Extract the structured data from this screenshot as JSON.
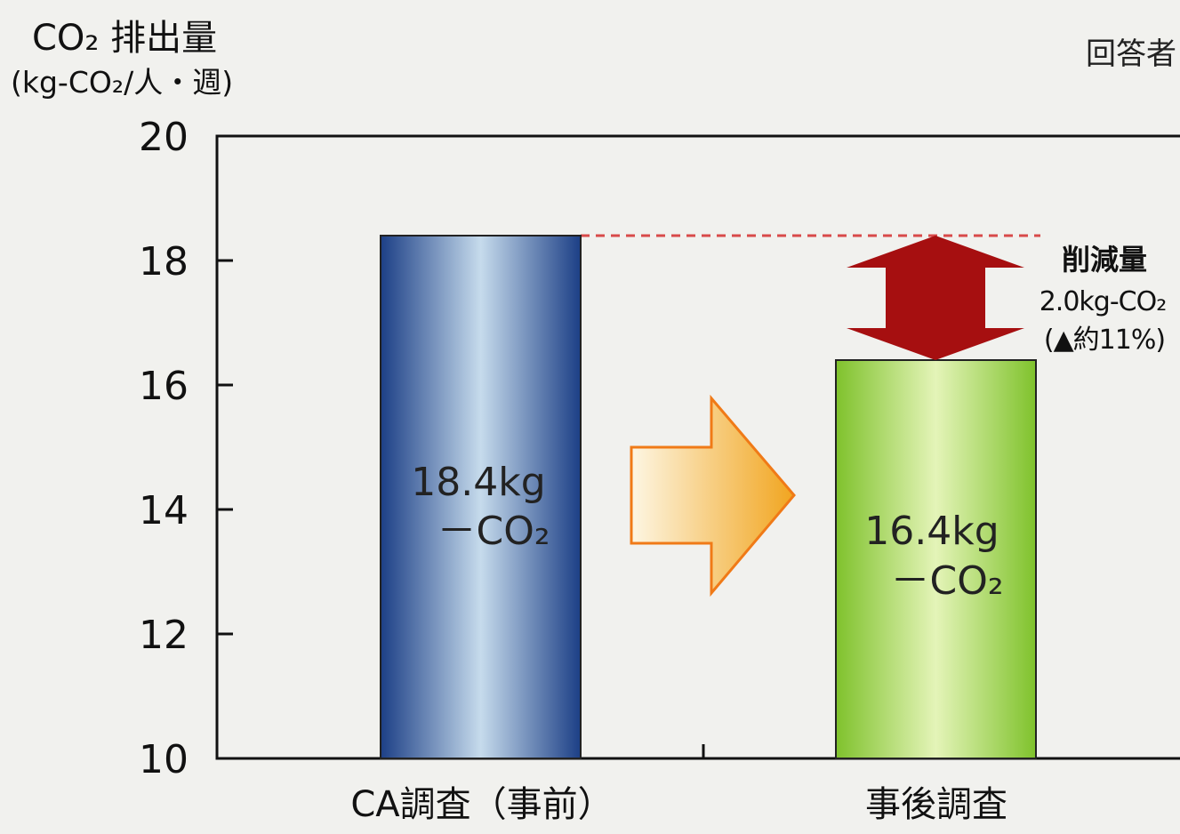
{
  "colors": {
    "background": "#f1f1ee",
    "bar1_dark": "#1c3f86",
    "bar1_light": "#c6dbec",
    "bar2_dark": "#7fc22c",
    "bar2_light": "#e4f4b8",
    "reduction_arrow": "#a60f10",
    "forward_arrow_start": "#fdf6e3",
    "forward_arrow_end": "#f1a51f",
    "forward_arrow_stroke": "#f07a17",
    "dashed_line": "#d84a4a"
  },
  "chart_data": {
    "type": "bar",
    "title": "",
    "ylabel": "CO₂ 排出量",
    "yunit": "(kg-CO₂/人・週)",
    "header_note": "回答者",
    "ylim": [
      10,
      20
    ],
    "yticks": [
      "10",
      "12",
      "14",
      "16",
      "18",
      "20"
    ],
    "grid": false,
    "categories": [
      "CA調査（事前）",
      "事後調査"
    ],
    "values": [
      18.4,
      16.4
    ],
    "bar_labels": [
      {
        "line1": "18.4kg",
        "line2": "－CO₂"
      },
      {
        "line1": "16.4kg",
        "line2": "－CO₂"
      }
    ],
    "annotation": {
      "line1": "削減量",
      "line2": "2.0kg-CO₂",
      "line3": "(▲約11%)"
    }
  }
}
